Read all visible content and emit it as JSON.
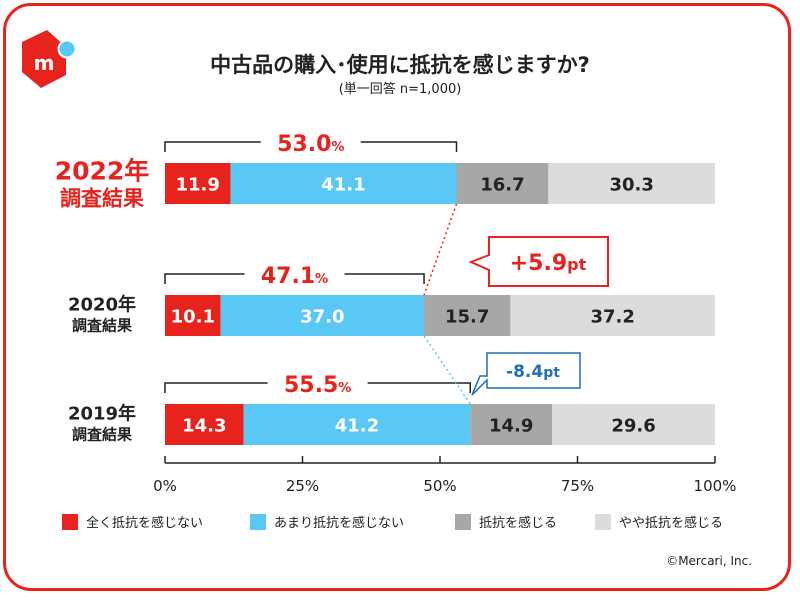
{
  "header": {
    "title": "中古品の購入･使用に抵抗を感じますか?",
    "subtitle": "(単一回答 n=1,000)"
  },
  "copyright": "©Mercari, Inc.",
  "colors": {
    "accent": "#e8231e",
    "series": [
      "#e8231e",
      "#59c8f5",
      "#a7a7a7",
      "#dcdcdc"
    ]
  },
  "logo": {
    "icon": "mercari-box-logo-icon"
  },
  "chart_data": {
    "type": "bar",
    "orientation": "horizontal",
    "stacked": true,
    "unit": "%",
    "xlim": [
      0,
      100
    ],
    "xticks": [
      "0%",
      "25%",
      "50%",
      "75%",
      "100%"
    ],
    "categories": [
      {
        "year": "2022年",
        "sub": "調査結果",
        "highlight": true
      },
      {
        "year": "2020年",
        "sub": "調査結果",
        "highlight": false
      },
      {
        "year": "2019年",
        "sub": "調査結果",
        "highlight": false
      }
    ],
    "series": [
      {
        "name": "全く抵抗を感じない",
        "values": [
          11.9,
          10.1,
          14.3
        ]
      },
      {
        "name": "あまり抵抗を感じない",
        "values": [
          41.1,
          37.0,
          41.2
        ]
      },
      {
        "name": "抵抗を感じる",
        "values": [
          16.7,
          15.7,
          14.9
        ]
      },
      {
        "name": "やや抵抗を感じる",
        "values": [
          30.3,
          37.2,
          29.6
        ]
      }
    ],
    "totals": [
      {
        "value": "53.0",
        "unit": "%"
      },
      {
        "value": "47.1",
        "unit": "%"
      },
      {
        "value": "55.5",
        "unit": "%"
      }
    ],
    "annotations": [
      {
        "value": "+5.9",
        "unit": "pt",
        "color": "#e8231e"
      },
      {
        "value": "-8.4",
        "unit": "pt",
        "color": "#1f6fb8"
      }
    ]
  }
}
